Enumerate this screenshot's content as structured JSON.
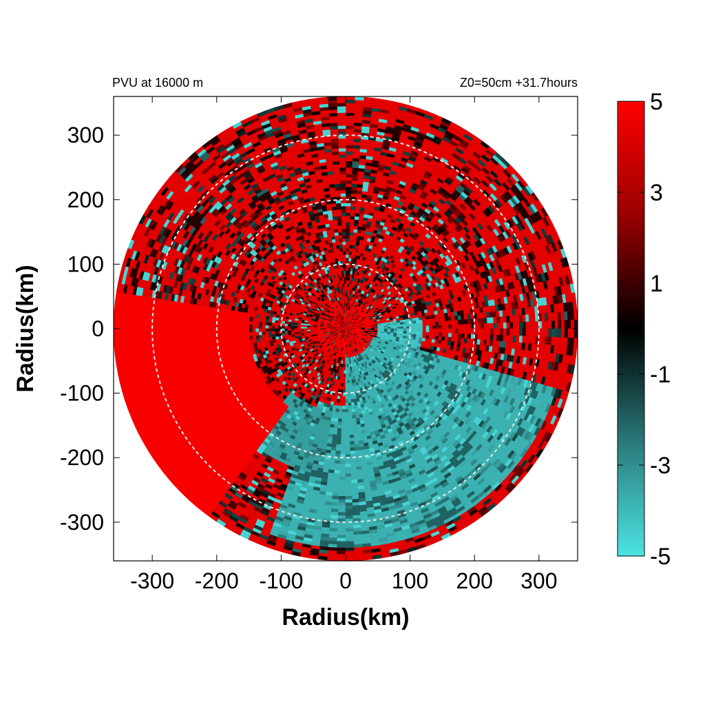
{
  "chart_data": {
    "type": "heatmap",
    "title_left": "PVU at 16000 m",
    "title_right": "Z0=50cm  +31.7hours",
    "xlabel": "Radius(km)",
    "ylabel": "Radius(km)",
    "xlim": [
      -360,
      360
    ],
    "ylim": [
      -360,
      360
    ],
    "x_ticks": [
      -300,
      -200,
      -100,
      0,
      100,
      200,
      300
    ],
    "y_ticks": [
      300,
      200,
      100,
      0,
      -100,
      -200,
      -300
    ],
    "domain_radius": 360,
    "reference_circles_km": [
      100,
      200,
      300
    ],
    "colorbar": {
      "min": -5,
      "max": 5,
      "ticks": [
        5,
        3,
        1,
        -1,
        -3,
        -5
      ],
      "colors": {
        "low": "#4de3e3",
        "mid": "#000000",
        "high": "#ff0000"
      }
    },
    "field_description_regions": [
      {
        "name": "positive-core",
        "sign": "positive"
      },
      {
        "name": "negative-southeast",
        "sign": "negative"
      }
    ]
  }
}
